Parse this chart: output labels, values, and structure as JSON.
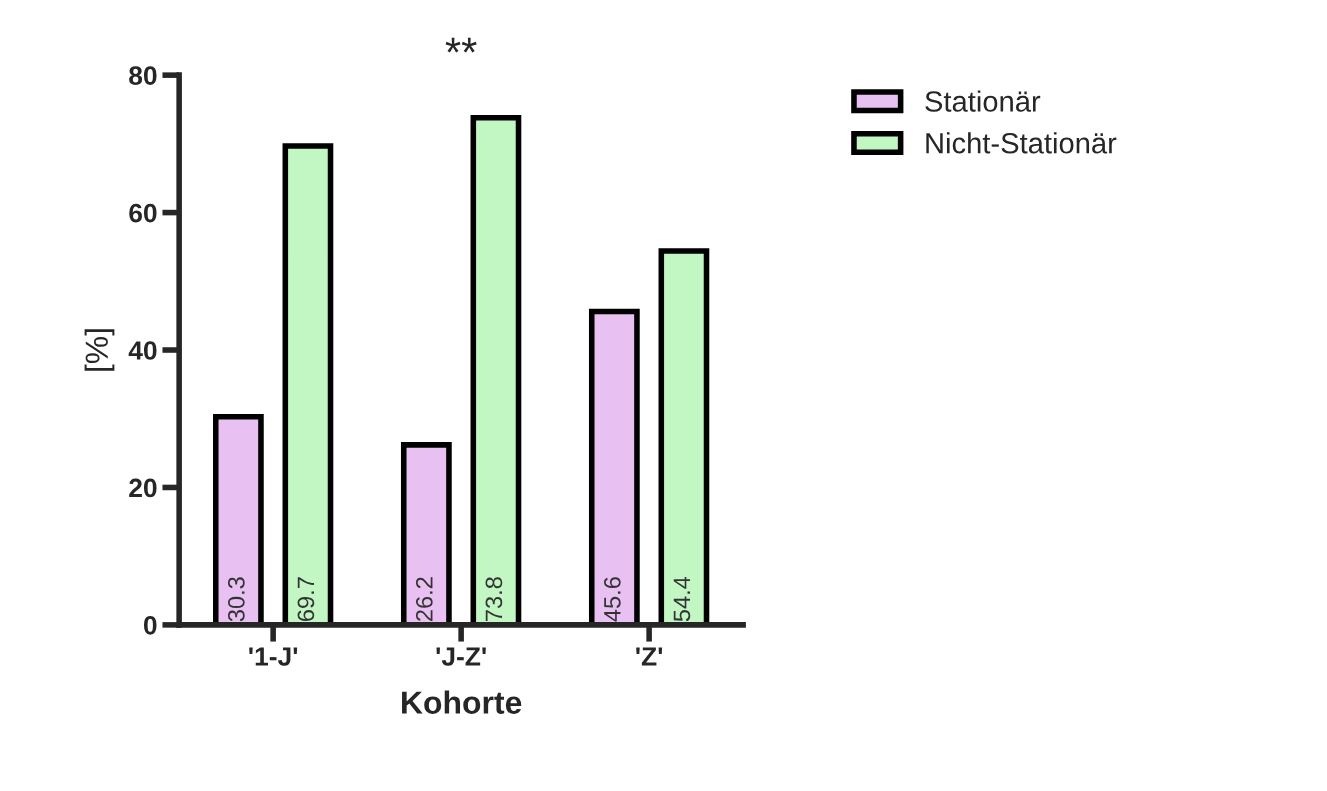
{
  "chart_data": {
    "type": "bar",
    "categories": [
      "'1-J'",
      "'J-Z'",
      "'Z'"
    ],
    "series": [
      {
        "name": "Stationär",
        "color": "#e8c1f2",
        "values": [
          30.3,
          26.2,
          45.6
        ]
      },
      {
        "name": "Nicht-Stationär",
        "color": "#c2f7c4",
        "values": [
          69.7,
          73.8,
          54.4
        ]
      }
    ],
    "xlabel": "Kohorte",
    "ylabel": "[%]",
    "ylim": [
      0,
      80
    ],
    "yticks": [
      0,
      20,
      40,
      60,
      80
    ],
    "data_labels": true,
    "legend": "top right",
    "grid": false,
    "annotations": [
      "**"
    ]
  }
}
